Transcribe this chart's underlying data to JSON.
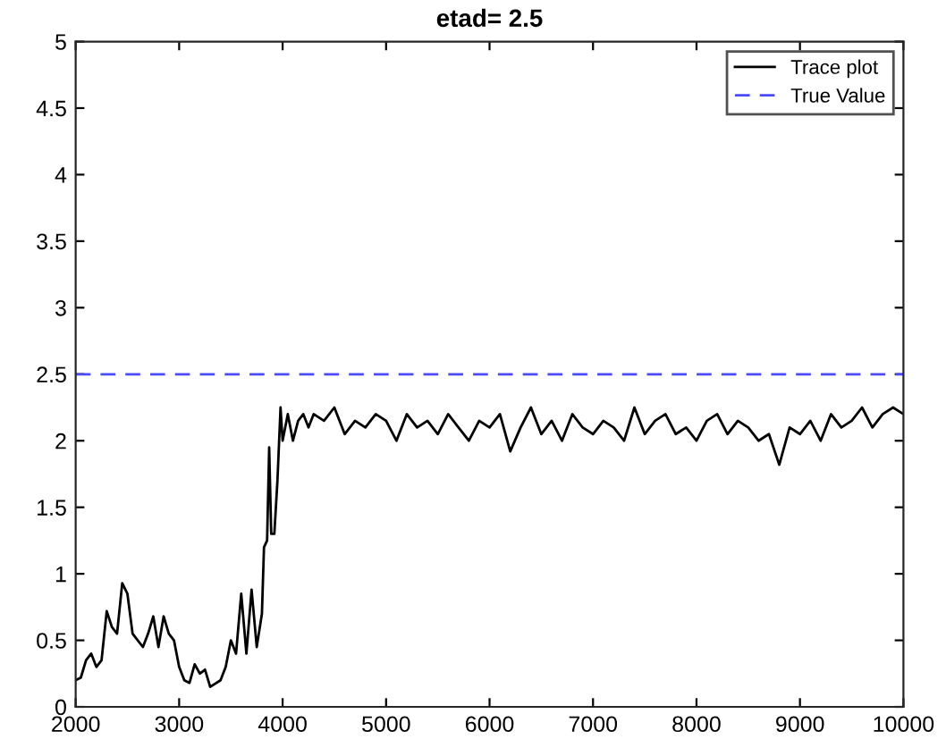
{
  "chart_data": {
    "type": "line",
    "title": "etad= 2.5",
    "series": [
      {
        "name": "Trace plot",
        "color": "#000000",
        "x": [
          2000,
          2050,
          2100,
          2150,
          2200,
          2250,
          2300,
          2350,
          2400,
          2450,
          2500,
          2550,
          2600,
          2650,
          2700,
          2750,
          2800,
          2850,
          2900,
          2950,
          3000,
          3050,
          3100,
          3150,
          3200,
          3250,
          3300,
          3400,
          3450,
          3500,
          3550,
          3600,
          3650,
          3700,
          3750,
          3800,
          3820,
          3850,
          3870,
          3890,
          3920,
          3950,
          3980,
          4000,
          4050,
          4100,
          4150,
          4200,
          4250,
          4300,
          4400,
          4500,
          4600,
          4700,
          4800,
          4900,
          5000,
          5100,
          5200,
          5300,
          5400,
          5500,
          5600,
          5700,
          5800,
          5900,
          6000,
          6100,
          6200,
          6300,
          6400,
          6500,
          6600,
          6700,
          6800,
          6900,
          7000,
          7100,
          7200,
          7300,
          7400,
          7500,
          7600,
          7700,
          7800,
          7900,
          8000,
          8100,
          8200,
          8300,
          8400,
          8500,
          8600,
          8700,
          8800,
          8900,
          9000,
          9100,
          9200,
          9300,
          9400,
          9500,
          9600,
          9700,
          9800,
          9900,
          10000
        ],
        "values": [
          0.2,
          0.22,
          0.35,
          0.4,
          0.3,
          0.35,
          0.72,
          0.6,
          0.55,
          0.93,
          0.85,
          0.55,
          0.5,
          0.45,
          0.55,
          0.68,
          0.45,
          0.68,
          0.55,
          0.5,
          0.3,
          0.2,
          0.18,
          0.32,
          0.25,
          0.28,
          0.15,
          0.2,
          0.3,
          0.5,
          0.4,
          0.85,
          0.4,
          0.88,
          0.45,
          0.7,
          1.2,
          1.25,
          1.95,
          1.3,
          1.3,
          1.7,
          2.25,
          2.0,
          2.2,
          2.0,
          2.15,
          2.2,
          2.1,
          2.2,
          2.15,
          2.25,
          2.05,
          2.15,
          2.1,
          2.2,
          2.15,
          2.0,
          2.2,
          2.1,
          2.15,
          2.05,
          2.2,
          2.1,
          2.0,
          2.15,
          2.1,
          2.2,
          1.92,
          2.1,
          2.25,
          2.05,
          2.15,
          2.0,
          2.2,
          2.1,
          2.05,
          2.15,
          2.1,
          2.0,
          2.25,
          2.05,
          2.15,
          2.2,
          2.05,
          2.1,
          2.0,
          2.15,
          2.2,
          2.05,
          2.15,
          2.1,
          2.0,
          2.05,
          1.82,
          2.1,
          2.05,
          2.15,
          2.0,
          2.2,
          2.1,
          2.15,
          2.25,
          2.1,
          2.2,
          2.25,
          2.2
        ]
      },
      {
        "name": "True Value",
        "color": "#4a4aff",
        "line_style": "dashed",
        "x": [
          2000,
          10000
        ],
        "values": [
          2.5,
          2.5
        ]
      }
    ],
    "xlim": [
      2000,
      10000
    ],
    "xticks": [
      2000,
      3000,
      4000,
      5000,
      6000,
      7000,
      8000,
      9000,
      10000
    ],
    "ylim": [
      0,
      5
    ],
    "yticks": [
      0,
      0.5,
      1,
      1.5,
      2,
      2.5,
      3,
      3.5,
      4,
      4.5,
      5
    ],
    "legend": "top right",
    "grid": false
  }
}
